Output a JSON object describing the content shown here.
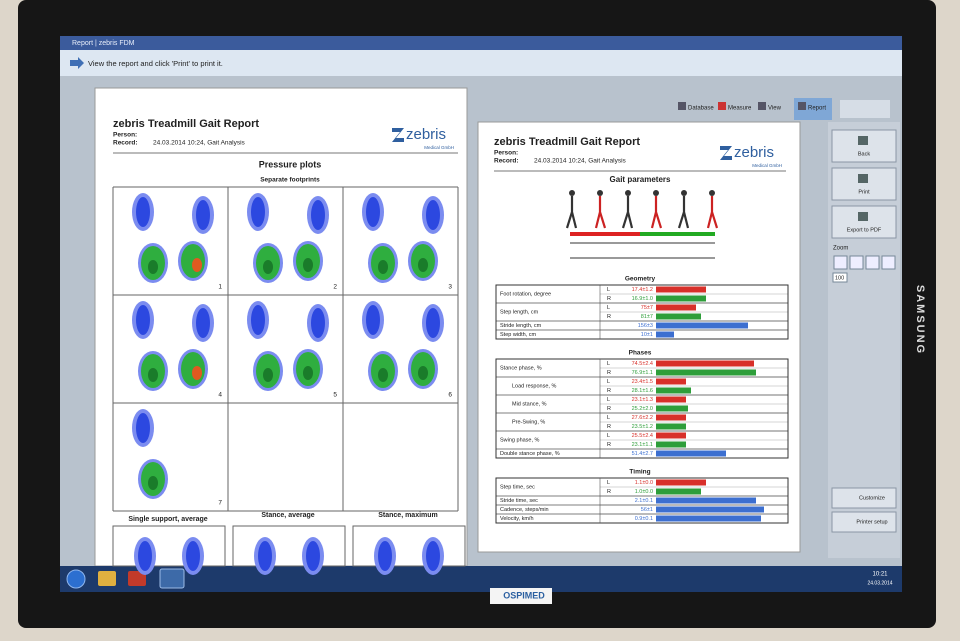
{
  "window": {
    "title": "Report | zebris FDM"
  },
  "instruction": "View the report and click 'Print' to print it.",
  "toolbar": [
    "Database",
    "Measure",
    "View",
    "Report"
  ],
  "sidebar": {
    "buttons": [
      "Back",
      "Print",
      "Export to PDF"
    ],
    "zoom_label": "Zoom",
    "zoom_value": "100",
    "bottom": [
      "Customize",
      "Printer setup"
    ]
  },
  "left_report": {
    "title": "zebris Treadmill Gait Report",
    "person_label": "Person:",
    "record_label": "Record:",
    "record_value": "24.03.2014 10:24, Gait Analysis",
    "logo": "zebris",
    "logo_sub": "Medical GmbH",
    "section": "Pressure plots",
    "subsection": "Separate footprints",
    "footprint_numbers": [
      "1",
      "2",
      "3",
      "4",
      "5",
      "6",
      "7"
    ],
    "bottom_headers": [
      "Single support, average",
      "Stance, average",
      "Stance, maximum"
    ]
  },
  "right_report": {
    "title": "zebris Treadmill Gait Report",
    "person_label": "Person:",
    "record_label": "Record:",
    "record_value": "24.03.2014 10:24, Gait Analysis",
    "logo": "zebris",
    "logo_sub": "Medical GmbH",
    "section": "Gait parameters",
    "groups": [
      {
        "title": "Geometry",
        "rows": [
          {
            "label": "Foot rotation, degree",
            "entries": [
              {
                "side": "L",
                "value": "17.4±1.2"
              },
              {
                "side": "R",
                "value": "16.9±1.0"
              }
            ]
          },
          {
            "label": "Step length, cm",
            "entries": [
              {
                "side": "L",
                "value": "75±7"
              },
              {
                "side": "R",
                "value": "81±7"
              }
            ]
          },
          {
            "label": "Stride length, cm",
            "entries": [
              {
                "value": "156±3"
              }
            ]
          },
          {
            "label": "Step width, cm",
            "entries": [
              {
                "value": "10±1"
              }
            ]
          }
        ]
      },
      {
        "title": "Phases",
        "rows": [
          {
            "label": "Stance phase, %",
            "entries": [
              {
                "side": "L",
                "value": "74.5±2.4"
              },
              {
                "side": "R",
                "value": "76.9±1.1"
              }
            ]
          },
          {
            "label": "Load response, %",
            "entries": [
              {
                "side": "L",
                "value": "23.4±1.5"
              },
              {
                "side": "R",
                "value": "28.1±1.6"
              }
            ]
          },
          {
            "label": "Mid stance, %",
            "entries": [
              {
                "side": "L",
                "value": "23.1±1.3"
              },
              {
                "side": "R",
                "value": "25.2±2.0"
              }
            ]
          },
          {
            "label": "Pre-Swing, %",
            "entries": [
              {
                "side": "L",
                "value": "27.6±2.2"
              },
              {
                "side": "R",
                "value": "23.5±1.2"
              }
            ]
          },
          {
            "label": "Swing phase, %",
            "entries": [
              {
                "side": "L",
                "value": "25.5±2.4"
              },
              {
                "side": "R",
                "value": "23.1±1.1"
              }
            ]
          },
          {
            "label": "Double stance phase, %",
            "entries": [
              {
                "value": "51.4±2.7"
              }
            ]
          }
        ]
      },
      {
        "title": "Timing",
        "rows": [
          {
            "label": "Step time, sec",
            "entries": [
              {
                "side": "L",
                "value": "1.1±0.0"
              },
              {
                "side": "R",
                "value": "1.0±0.0"
              }
            ]
          },
          {
            "label": "Stride time, sec",
            "entries": [
              {
                "value": "2.1±0.1"
              }
            ]
          },
          {
            "label": "Cadence, steps/min",
            "entries": [
              {
                "value": "56±1"
              }
            ]
          },
          {
            "label": "Velocity, km/h",
            "entries": [
              {
                "value": "0.9±0.1"
              }
            ]
          }
        ]
      }
    ]
  },
  "taskbar": {
    "clock_time": "10:21",
    "clock_date": "24.03.2014"
  },
  "monitor": {
    "brand": "SAMSUNG",
    "sticker": "OSPIMED"
  }
}
